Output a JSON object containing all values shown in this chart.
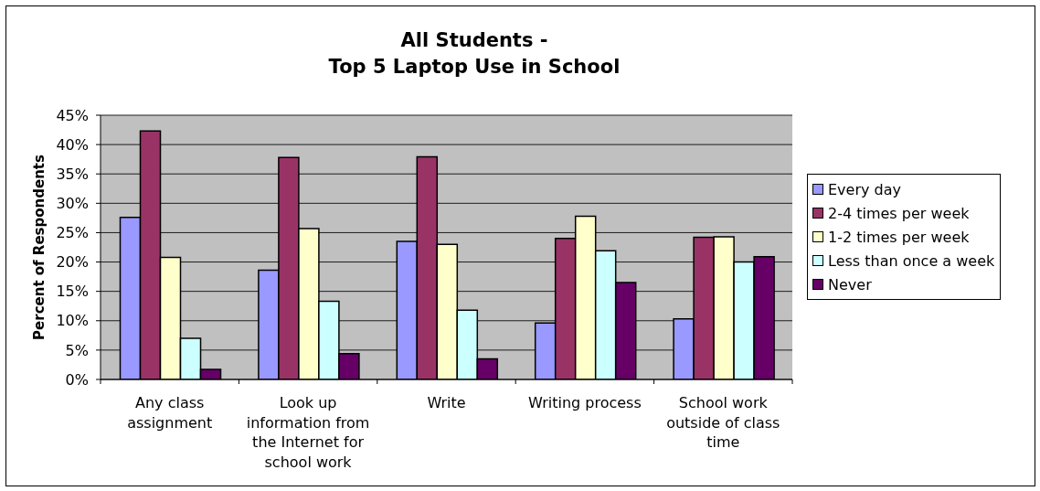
{
  "chart_data": {
    "type": "bar",
    "title": "All Students -\nTop 5 Laptop Use in School",
    "ylabel": "Percent of Respondents",
    "categories": [
      "Any class assignment",
      "Look up information from the Internet for school work",
      "Write",
      "Writing process",
      "School work outside of class time"
    ],
    "series": [
      {
        "name": "Every day",
        "color": "#9999ff",
        "values": [
          27.6,
          18.6,
          23.5,
          9.6,
          10.3
        ]
      },
      {
        "name": "2-4 times per week",
        "color": "#993366",
        "values": [
          42.3,
          37.8,
          37.9,
          24.0,
          24.2
        ]
      },
      {
        "name": "1-2 times per week",
        "color": "#ffffcc",
        "values": [
          20.8,
          25.7,
          23.0,
          27.8,
          24.3
        ]
      },
      {
        "name": "Less than once a week",
        "color": "#ccffff",
        "values": [
          7.0,
          13.3,
          11.8,
          21.9,
          20.0
        ]
      },
      {
        "name": "Never",
        "color": "#660066",
        "values": [
          1.7,
          4.4,
          3.5,
          16.5,
          20.9
        ]
      }
    ],
    "ylim": [
      0,
      45
    ],
    "yticks": [
      {
        "value": 0,
        "label": "0%"
      },
      {
        "value": 5,
        "label": "5%"
      },
      {
        "value": 10,
        "label": "10%"
      },
      {
        "value": 15,
        "label": "15%"
      },
      {
        "value": 20,
        "label": "20%"
      },
      {
        "value": 25,
        "label": "25%"
      },
      {
        "value": 30,
        "label": "30%"
      },
      {
        "value": 35,
        "label": "35%"
      },
      {
        "value": 40,
        "label": "40%"
      },
      {
        "value": 45,
        "label": "45%"
      }
    ],
    "grid": "y",
    "legend": "right"
  }
}
